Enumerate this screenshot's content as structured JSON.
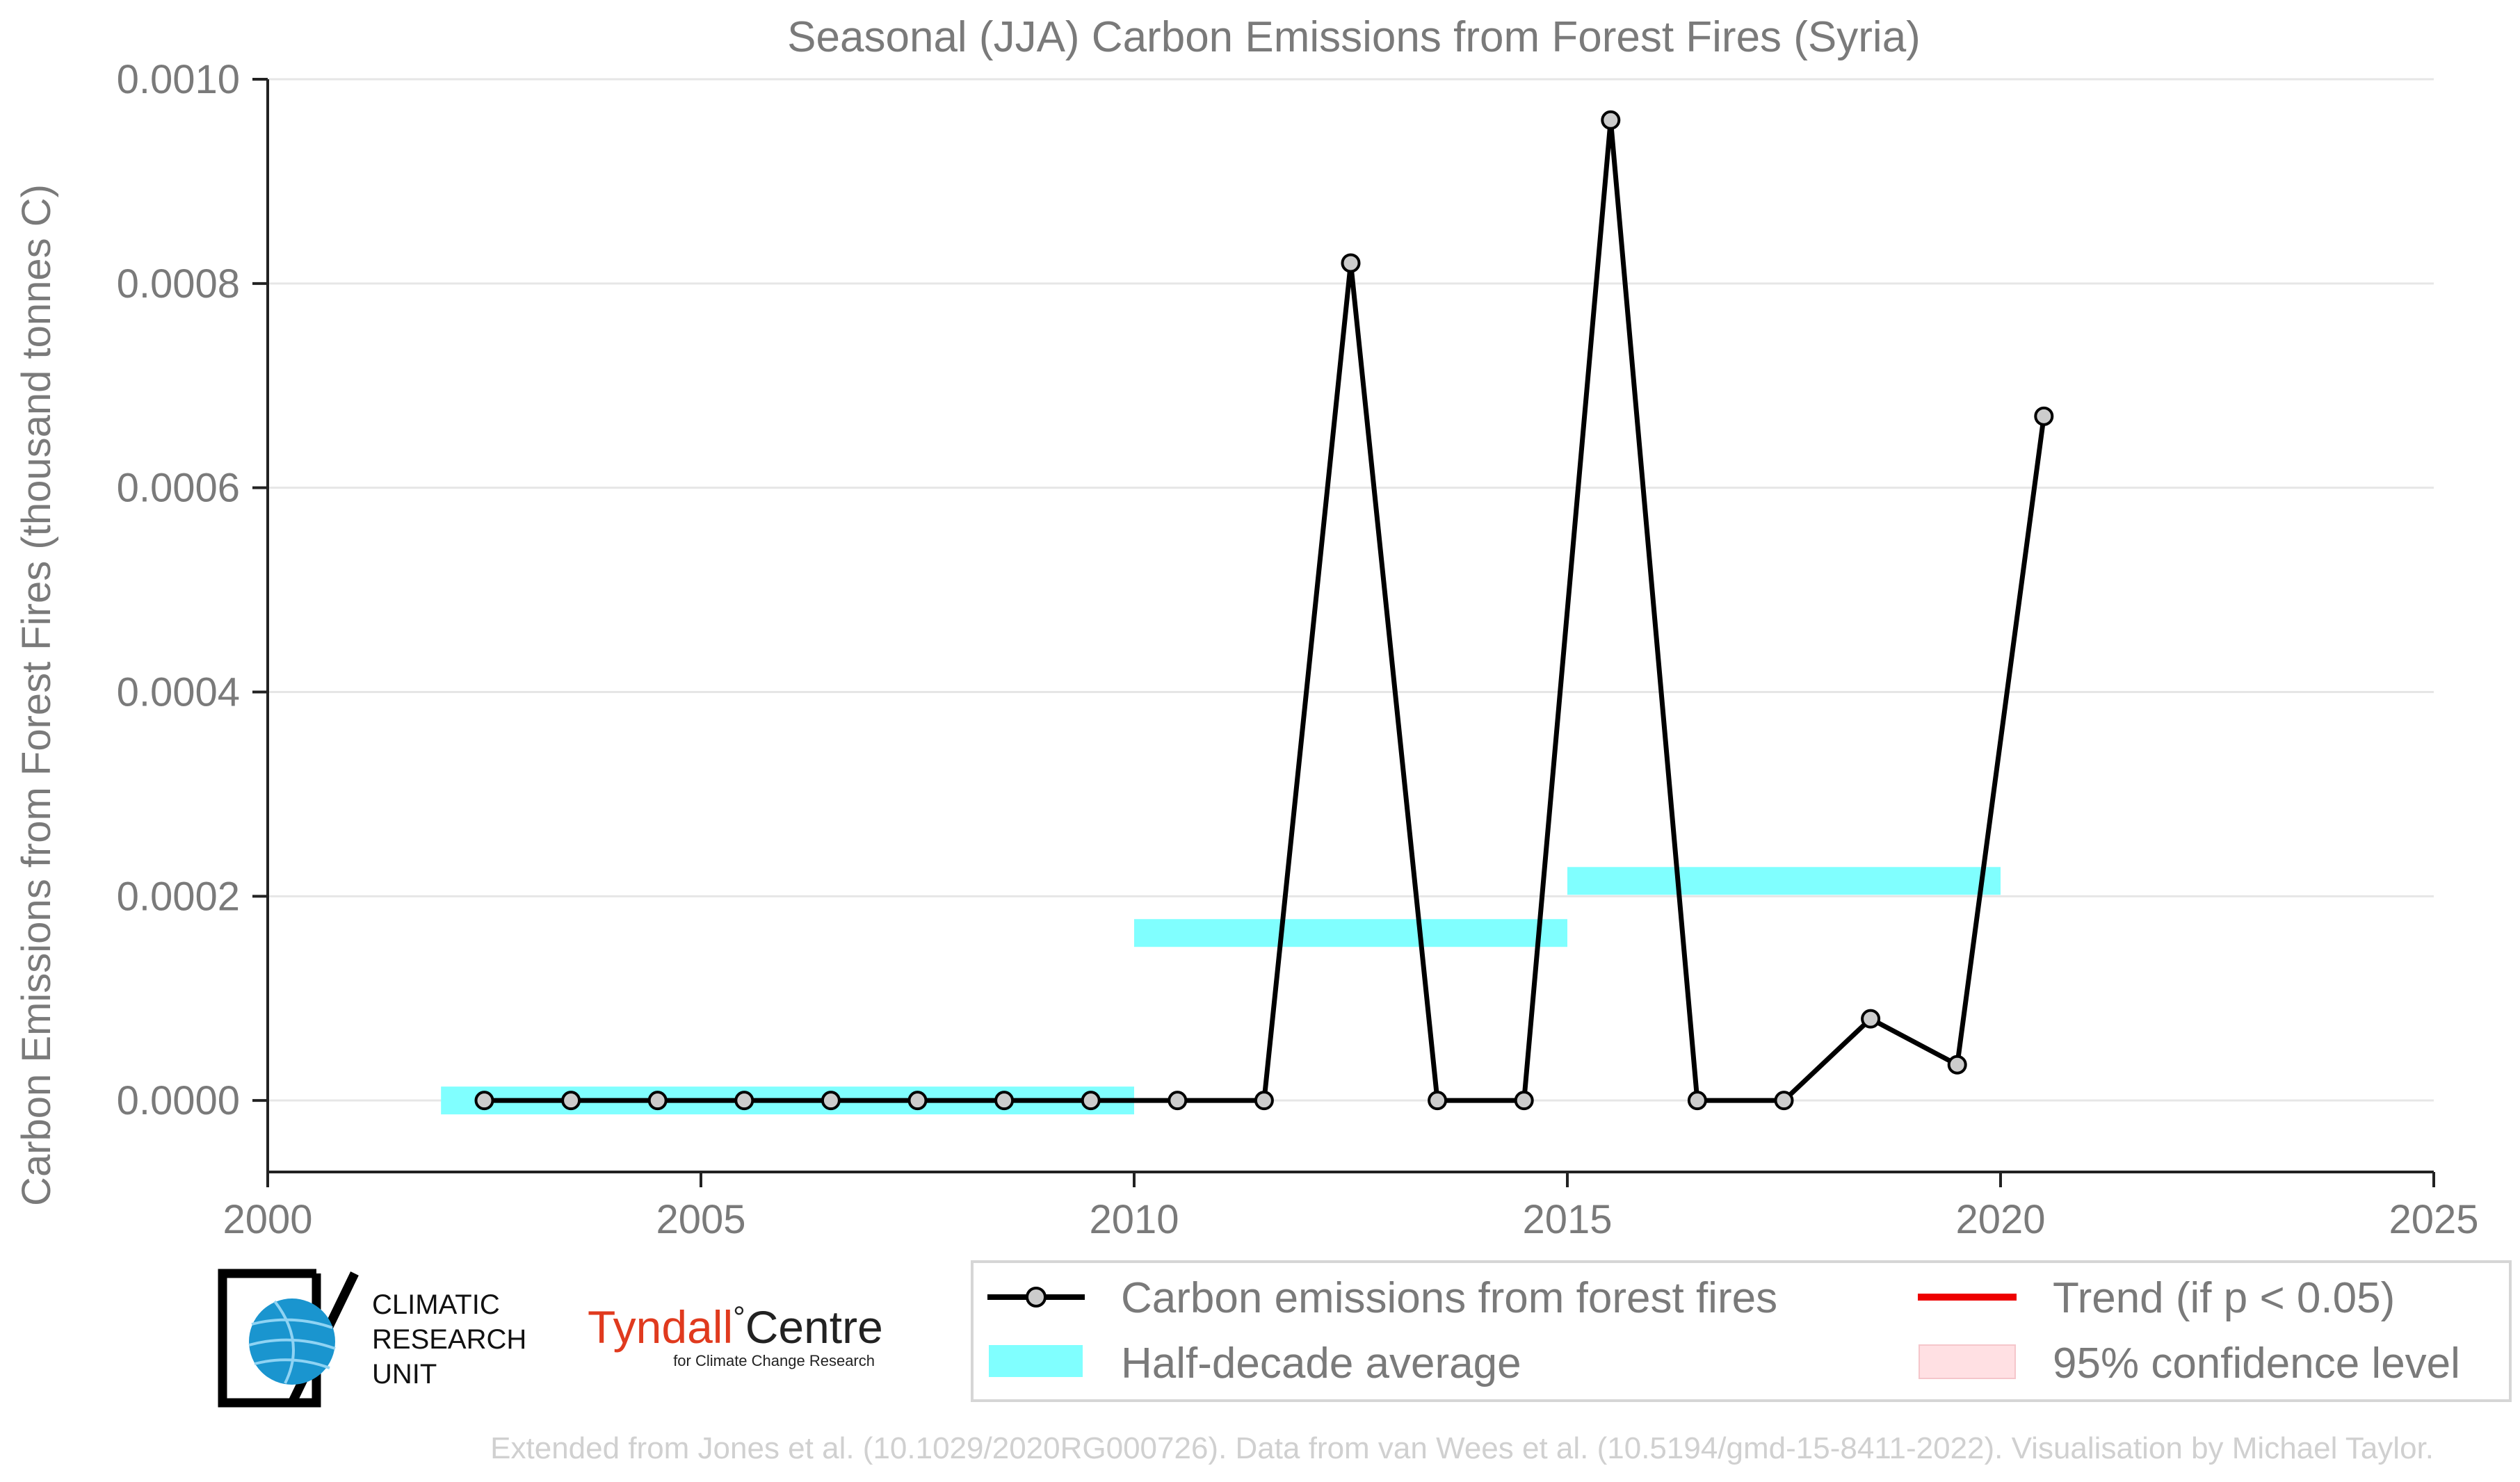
{
  "chart_data": {
    "type": "line",
    "title": "Seasonal (JJA) Carbon Emissions from Forest Fires (Syria)",
    "xlabel": "",
    "ylabel": "Carbon Emissions from Forest Fires (thousand tonnes C)",
    "xlim": [
      2000,
      2025
    ],
    "ylim": [
      -7e-05,
      0.001
    ],
    "x_ticks": [
      "2000",
      "2005",
      "2010",
      "2015",
      "2020",
      "2025"
    ],
    "y_ticks": [
      "0.0000",
      "0.0002",
      "0.0004",
      "0.0006",
      "0.0008",
      "0.0010"
    ],
    "grid": "horizontal",
    "series": [
      {
        "name": "Carbon emissions from forest fires",
        "color": "#000000",
        "marker_color": "#cccccc",
        "x": [
          2002.5,
          2003.5,
          2004.5,
          2005.5,
          2006.5,
          2007.5,
          2008.5,
          2009.5,
          2010.5,
          2011.5,
          2012.5,
          2013.5,
          2014.5,
          2015.5,
          2016.5,
          2017.5,
          2018.5,
          2019.5,
          2020.5
        ],
        "y": [
          0,
          0,
          0,
          0,
          0,
          0,
          0,
          0,
          0,
          0,
          0.00082,
          0,
          0,
          0.00096,
          0,
          0,
          8e-05,
          3.5e-05,
          0.00067
        ]
      }
    ],
    "half_decade_average": {
      "name": "Half-decade average",
      "color": "#80ffff",
      "segments": [
        {
          "x_start": 2002,
          "x_end": 2010,
          "y": 0.0
        },
        {
          "x_start": 2010,
          "x_end": 2015,
          "y": 0.000164
        },
        {
          "x_start": 2015,
          "x_end": 2020,
          "y": 0.000215
        }
      ]
    },
    "legend": {
      "position": "bottom-right",
      "entries": [
        {
          "label": "Carbon emissions from forest fires",
          "kind": "line-marker",
          "color": "#000000"
        },
        {
          "label": "Trend (if p < 0.05)",
          "kind": "line",
          "color": "#ee0000"
        },
        {
          "label": "Half-decade average",
          "kind": "band",
          "color": "#80ffff"
        },
        {
          "label": "95% confidence level",
          "kind": "patch",
          "color": "#ffe0e3"
        }
      ]
    }
  },
  "logos": {
    "cru": {
      "line1": "CLIMATIC",
      "line2": "RESEARCH",
      "line3": "UNIT",
      "globe_color": "#1a95cf"
    },
    "tyndall": {
      "name_a": "Tyndall",
      "degree": "°",
      "name_b": "Centre",
      "subtitle": "for Climate Change Research",
      "color_a": "#e03a1e",
      "color_b": "#222222"
    }
  },
  "footer": "Extended from Jones et al. (10.1029/2020RG000726). Data from van Wees et al. (10.5194/gmd-15-8411-2022). Visualisation by Michael Taylor."
}
